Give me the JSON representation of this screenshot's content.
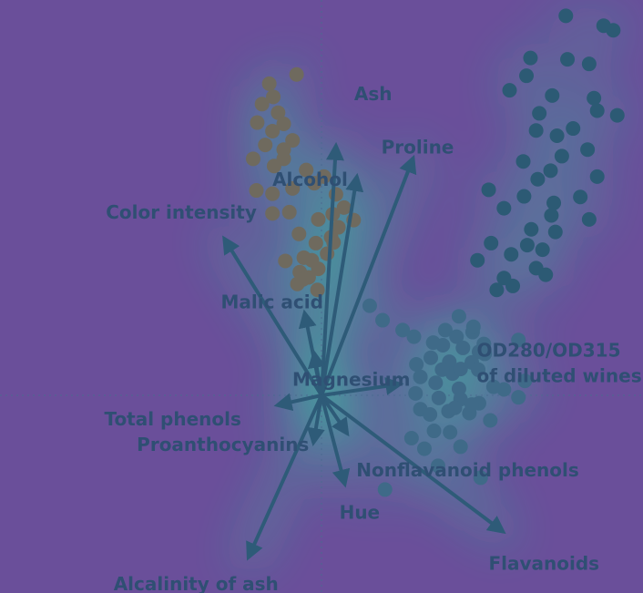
{
  "chart_data": {
    "type": "scatter",
    "title": "",
    "xlabel": "",
    "ylabel": "",
    "xlim": [
      -4.0,
      4.0
    ],
    "ylim": [
      -3.0,
      6.0
    ],
    "grid": false,
    "colors": {
      "background": "#6a4f9a",
      "glow": "#2fd0a0",
      "arrow": "#2e5b78",
      "label": "#2f4f73",
      "crosshair": "#4a6a90"
    },
    "series": [
      {
        "color": "#6f6a5e",
        "points": [
          [
            -0.31,
            4.87
          ],
          [
            -0.65,
            4.73
          ],
          [
            -0.6,
            4.53
          ],
          [
            -0.74,
            4.42
          ],
          [
            -0.54,
            4.29
          ],
          [
            -0.47,
            4.12
          ],
          [
            -0.8,
            4.14
          ],
          [
            -0.61,
            4.01
          ],
          [
            -0.36,
            3.87
          ],
          [
            -0.7,
            3.8
          ],
          [
            -0.47,
            3.73
          ],
          [
            -0.85,
            3.59
          ],
          [
            -0.47,
            3.59
          ],
          [
            -0.59,
            3.48
          ],
          [
            -0.19,
            3.42
          ],
          [
            0.03,
            3.32
          ],
          [
            -0.09,
            3.22
          ],
          [
            -0.81,
            3.11
          ],
          [
            -0.61,
            3.06
          ],
          [
            -0.36,
            3.14
          ],
          [
            0.18,
            3.05
          ],
          [
            0.28,
            2.85
          ],
          [
            0.4,
            2.66
          ],
          [
            0.14,
            2.75
          ],
          [
            -0.4,
            2.78
          ],
          [
            -0.61,
            2.76
          ],
          [
            -0.04,
            2.67
          ],
          [
            0.21,
            2.55
          ],
          [
            -0.28,
            2.45
          ],
          [
            0.15,
            2.32
          ],
          [
            0.07,
            2.15
          ],
          [
            -0.12,
            2.05
          ],
          [
            -0.45,
            2.04
          ],
          [
            -0.04,
            1.92
          ],
          [
            -0.27,
            1.87
          ],
          [
            -0.16,
            1.79
          ],
          [
            -0.3,
            1.69
          ],
          [
            -0.05,
            1.6
          ],
          [
            -0.23,
            1.76
          ],
          [
            -0.07,
            2.31
          ],
          [
            0.12,
            2.4
          ],
          [
            -0.22,
            2.09
          ]
        ]
      },
      {
        "color": "#2c5a74",
        "points": [
          [
            3.04,
            5.76
          ],
          [
            3.51,
            5.61
          ],
          [
            3.63,
            5.54
          ],
          [
            2.6,
            5.12
          ],
          [
            3.06,
            5.1
          ],
          [
            3.33,
            5.03
          ],
          [
            2.55,
            4.85
          ],
          [
            2.34,
            4.63
          ],
          [
            2.87,
            4.55
          ],
          [
            3.39,
            4.51
          ],
          [
            2.71,
            4.28
          ],
          [
            3.43,
            4.32
          ],
          [
            3.68,
            4.25
          ],
          [
            2.67,
            4.02
          ],
          [
            3.13,
            4.05
          ],
          [
            2.93,
            3.94
          ],
          [
            3.31,
            3.73
          ],
          [
            2.99,
            3.63
          ],
          [
            2.51,
            3.55
          ],
          [
            2.85,
            3.41
          ],
          [
            2.69,
            3.28
          ],
          [
            3.43,
            3.32
          ],
          [
            2.08,
            3.12
          ],
          [
            2.52,
            3.02
          ],
          [
            2.89,
            2.92
          ],
          [
            2.27,
            2.84
          ],
          [
            3.22,
            3.01
          ],
          [
            2.86,
            2.73
          ],
          [
            2.61,
            2.52
          ],
          [
            3.33,
            2.67
          ],
          [
            2.56,
            2.28
          ],
          [
            2.75,
            2.21
          ],
          [
            2.11,
            2.31
          ],
          [
            1.94,
            2.05
          ],
          [
            2.36,
            2.14
          ],
          [
            2.67,
            1.93
          ],
          [
            2.27,
            1.78
          ],
          [
            2.38,
            1.66
          ],
          [
            2.18,
            1.6
          ],
          [
            2.79,
            1.83
          ],
          [
            2.91,
            2.48
          ]
        ]
      },
      {
        "color": "#3f6a88",
        "points": [
          [
            0.6,
            1.36
          ],
          [
            0.76,
            1.14
          ],
          [
            1.01,
            0.99
          ],
          [
            1.15,
            0.89
          ],
          [
            1.71,
            1.2
          ],
          [
            1.54,
            0.99
          ],
          [
            1.68,
            0.89
          ],
          [
            1.51,
            0.76
          ],
          [
            1.76,
            0.72
          ],
          [
            2.02,
            0.78
          ],
          [
            1.96,
            0.66
          ],
          [
            1.36,
            0.57
          ],
          [
            1.59,
            0.51
          ],
          [
            1.87,
            0.5
          ],
          [
            1.95,
            0.39
          ],
          [
            1.63,
            0.33
          ],
          [
            1.23,
            0.28
          ],
          [
            1.42,
            0.19
          ],
          [
            1.71,
            0.1
          ],
          [
            2.14,
            0.13
          ],
          [
            1.17,
            0.03
          ],
          [
            1.46,
            -0.04
          ],
          [
            1.73,
            -0.06
          ],
          [
            1.96,
            -0.12
          ],
          [
            1.23,
            -0.21
          ],
          [
            1.58,
            -0.24
          ],
          [
            1.35,
            -0.29
          ],
          [
            1.84,
            -0.27
          ],
          [
            1.73,
            0.4
          ],
          [
            1.5,
            0.39
          ],
          [
            1.18,
            0.47
          ],
          [
            2.1,
            -0.38
          ],
          [
            1.12,
            -0.65
          ],
          [
            1.28,
            -0.81
          ],
          [
            1.6,
            -0.56
          ],
          [
            1.4,
            -0.54
          ],
          [
            1.98,
            -1.25
          ],
          [
            2.53,
            0.22
          ],
          [
            1.87,
            -0.14
          ],
          [
            2.03,
            0.63
          ],
          [
            1.45,
            -1.07
          ],
          [
            1.88,
            0.96
          ],
          [
            2.27,
            0.09
          ],
          [
            2.45,
            -0.03
          ],
          [
            1.66,
            -0.19
          ],
          [
            1.89,
            1.04
          ],
          [
            1.39,
            0.8
          ],
          [
            0.79,
            -1.43
          ],
          [
            1.73,
            -0.78
          ],
          [
            2.45,
            0.84
          ]
        ]
      }
    ],
    "loadings": [
      {
        "name": "Ash",
        "x": 0.18,
        "y": 3.79
      },
      {
        "name": "Proline",
        "x": 1.14,
        "y": 3.6
      },
      {
        "name": "Alcohol",
        "x": 0.44,
        "y": 3.32
      },
      {
        "name": "Color intensity",
        "x": -1.21,
        "y": 2.38
      },
      {
        "name": "Malic acid",
        "x": -0.21,
        "y": 1.25
      },
      {
        "name": "Magnesium",
        "x": -0.09,
        "y": 0.64
      },
      {
        "name": "OD280/OD315\nof diluted wines",
        "x": 0.98,
        "y": 0.17
      },
      {
        "name": "Total phenols",
        "x": -0.55,
        "y": -0.15
      },
      {
        "name": "Nonflavanoid phenols",
        "x": 0.32,
        "y": -0.58
      },
      {
        "name": "Proanthocyanins",
        "x": -0.1,
        "y": -0.72
      },
      {
        "name": "Hue",
        "x": 0.29,
        "y": -1.35
      },
      {
        "name": "Flavanoids",
        "x": 2.26,
        "y": -2.07
      },
      {
        "name": "Alcalinity of ash",
        "x": -0.91,
        "y": -2.46
      }
    ]
  }
}
